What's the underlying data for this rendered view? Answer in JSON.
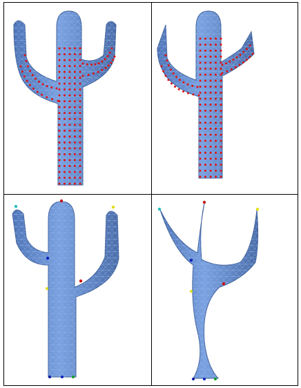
{
  "figure": {
    "panels": [
      {
        "id": "top-left",
        "model": "cactus",
        "pose": "rest",
        "markers": "red-vertex-dots"
      },
      {
        "id": "top-right",
        "model": "cactus",
        "pose": "arms-thinned",
        "markers": "red-vertex-dots"
      },
      {
        "id": "bottom-left",
        "model": "cactus",
        "pose": "rest",
        "markers": "colored-handles"
      },
      {
        "id": "bottom-right",
        "model": "cactus",
        "pose": "stretched",
        "markers": "colored-handles"
      }
    ],
    "handle_colors": [
      "#20c0c0",
      "#c01818",
      "#d8d800",
      "#1020c0",
      "#e0e010",
      "#d01010",
      "#0a1aa0",
      "#10a020"
    ],
    "mesh_color": "#6c95d6",
    "mesh_shadow": "#4a6ca8",
    "wire_color": "#8fb3e8",
    "dot_color": "#e01010"
  }
}
